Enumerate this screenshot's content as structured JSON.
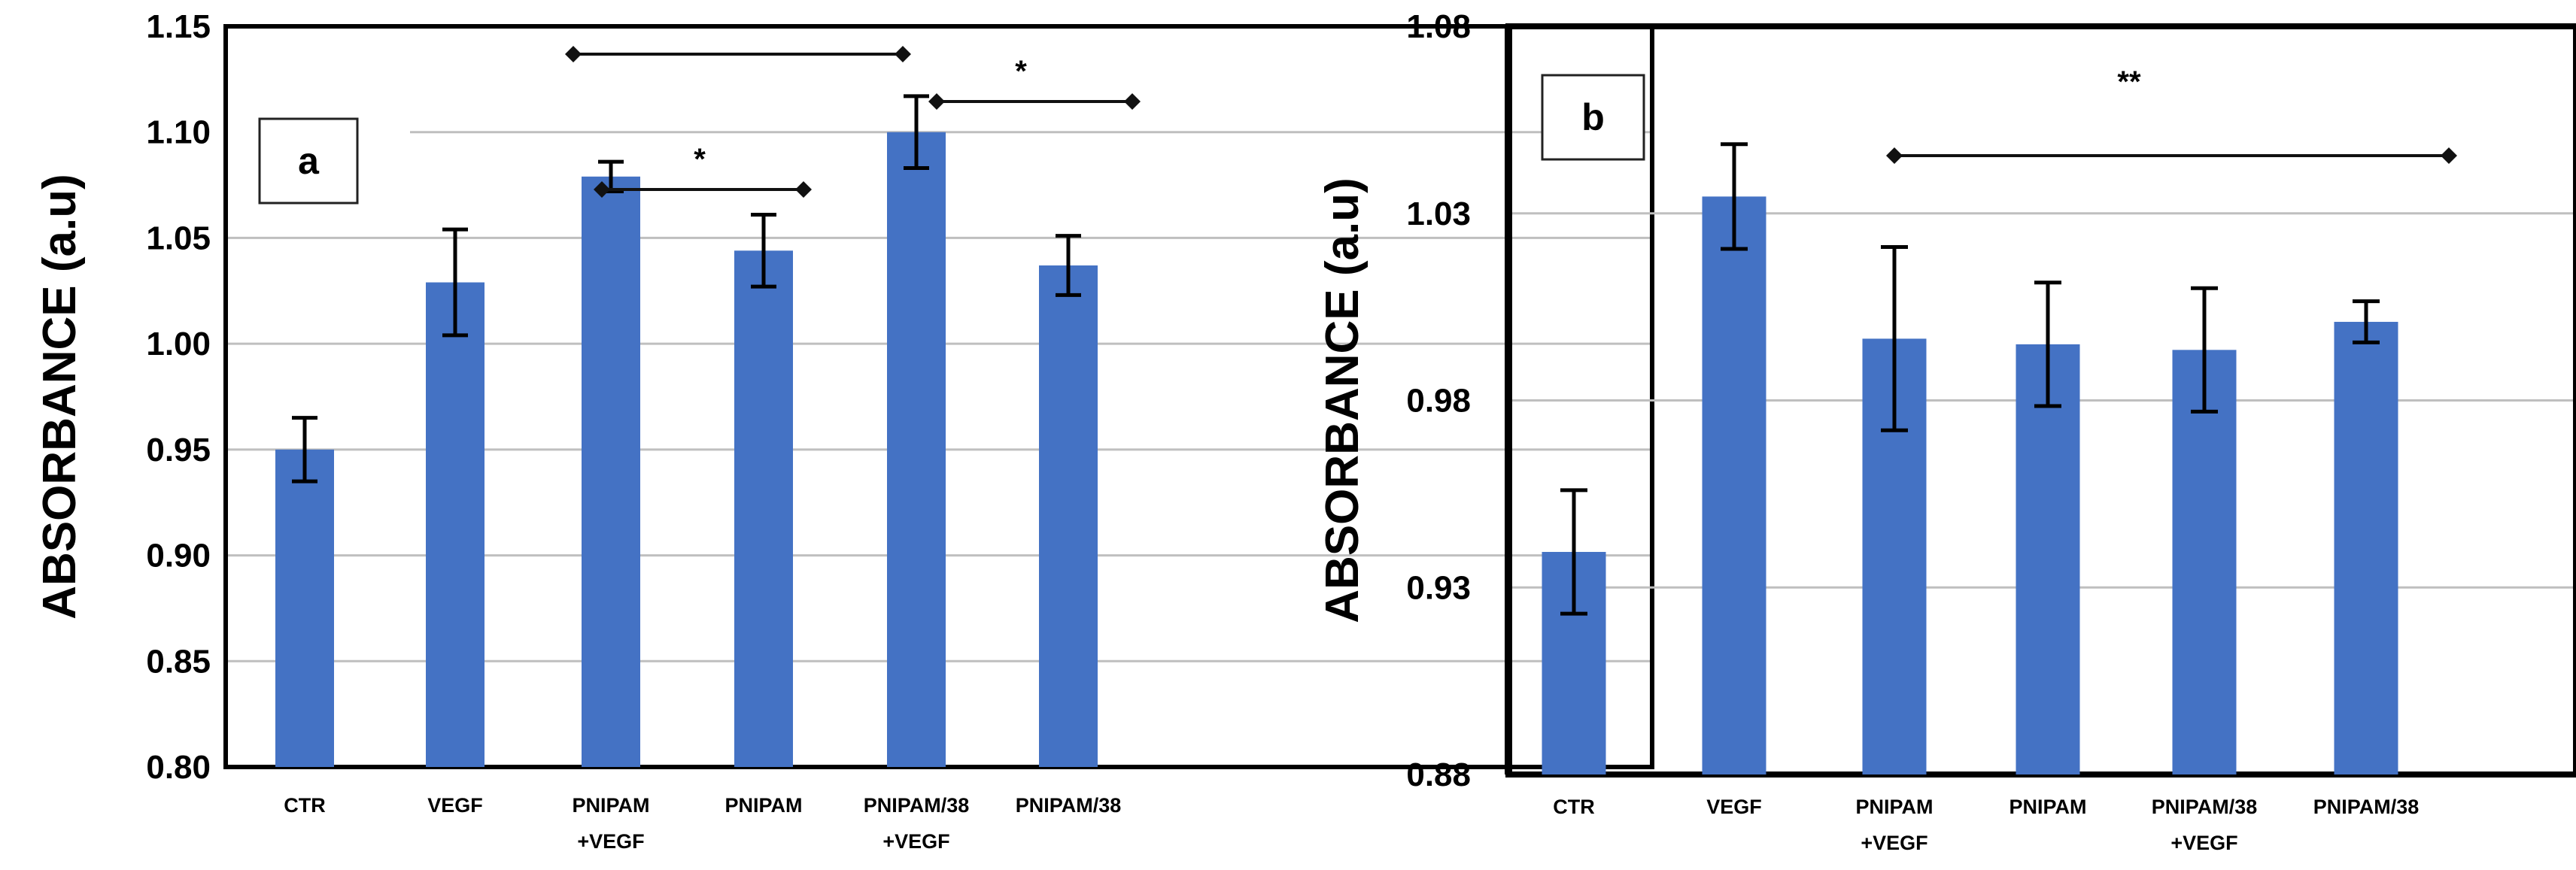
{
  "chart_data": [
    {
      "type": "bar",
      "panel_label": "a",
      "ylabel": "ABSORBANCE (a.u)",
      "xlabel": "",
      "ylim": [
        0.8,
        1.15
      ],
      "yticks": [
        "0.80",
        "0.85",
        "0.90",
        "0.95",
        "1.00",
        "1.05",
        "1.10",
        "1.15"
      ],
      "categories": [
        [
          "CTR"
        ],
        [
          "VEGF"
        ],
        [
          "PNIPAM",
          "+VEGF"
        ],
        [
          "PNIPAM"
        ],
        [
          "PNIPAM/38",
          "+VEGF"
        ],
        [
          "PNIPAM/38"
        ]
      ],
      "values": [
        0.95,
        1.029,
        1.079,
        1.044,
        1.1,
        1.037
      ],
      "errors": [
        0.015,
        0.025,
        0.007,
        0.017,
        0.017,
        0.014
      ],
      "bar_color": "#4472C4",
      "significance": [
        {
          "from": 2,
          "to": 4,
          "y": 1.155,
          "label": ""
        },
        {
          "from": 2,
          "to": 3,
          "y": 1.088,
          "label": "*"
        },
        {
          "from": 4,
          "to": 5,
          "y": 1.132,
          "label": "*"
        }
      ]
    },
    {
      "type": "bar",
      "panel_label": "b",
      "ylabel": "ABSORBANCE (a.u)",
      "xlabel": "",
      "ylim": [
        0.88,
        1.08
      ],
      "yticks": [
        "0.88",
        "0.93",
        "0.98",
        "1.03",
        "1.08"
      ],
      "categories": [
        [
          "CTR"
        ],
        [
          "VEGF"
        ],
        [
          "PNIPAM",
          "+VEGF"
        ],
        [
          "PNIPAM"
        ],
        [
          "PNIPAM/38",
          "+VEGF"
        ],
        [
          "PNIPAM/38"
        ]
      ],
      "values": [
        0.9395,
        1.0345,
        0.9965,
        0.995,
        0.9935,
        1.001
      ],
      "errors": [
        0.0165,
        0.014,
        0.0245,
        0.0165,
        0.0165,
        0.0055
      ],
      "bar_color": "#4472C4",
      "significance": [
        {
          "from": 2,
          "to": 5,
          "y": 1.0465,
          "label": "**"
        }
      ]
    }
  ]
}
